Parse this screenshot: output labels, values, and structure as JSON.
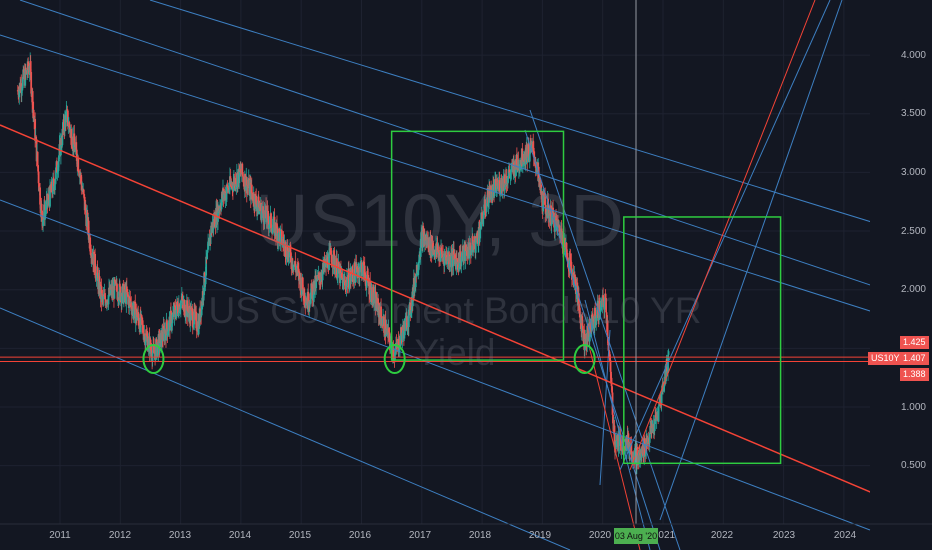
{
  "watermark": {
    "symbol": "US10Y, 3D",
    "name": "US Government Bonds 10 YR Yield"
  },
  "price_axis": {
    "ticks": [
      "4.000",
      "3.500",
      "3.000",
      "2.500",
      "2.000",
      "1.500",
      "1.000",
      "0.500"
    ],
    "badges": {
      "symbol_tag": "US10Y",
      "upper": "1.425",
      "last": "1.407",
      "lower": "1.388"
    }
  },
  "time_axis": {
    "ticks": [
      "2011",
      "2012",
      "2013",
      "2014",
      "2015",
      "2016",
      "2017",
      "2018",
      "2019",
      "2020",
      "2021",
      "2022",
      "2023",
      "2024"
    ],
    "cursor_label": "03 Aug '20"
  },
  "colors": {
    "background": "#131722",
    "candle_up": "#26a69a",
    "candle_down": "#ef5350",
    "channel_lines": "#3d7fc1",
    "trend_line": "#f44336",
    "boxes": "#2ecc40",
    "symbol_badge": "#ef5350"
  },
  "chart_data": {
    "type": "line",
    "title": "US10Y, 3D",
    "subtitle": "US Government Bonds 10 YR Yield",
    "ylim": [
      0.0,
      4.4
    ],
    "xlim": [
      2010.3,
      2025.0
    ],
    "x": [
      2010.3,
      2010.5,
      2010.7,
      2010.9,
      2011.1,
      2011.3,
      2011.5,
      2011.7,
      2011.9,
      2012.1,
      2012.3,
      2012.55,
      2012.8,
      2013.0,
      2013.3,
      2013.5,
      2013.7,
      2014.0,
      2014.3,
      2014.6,
      2014.9,
      2015.1,
      2015.3,
      2015.5,
      2015.7,
      2016.0,
      2016.3,
      2016.55,
      2016.8,
      2017.0,
      2017.3,
      2017.6,
      2017.9,
      2018.1,
      2018.4,
      2018.7,
      2018.85,
      2019.0,
      2019.3,
      2019.55,
      2019.7,
      2019.9,
      2020.05,
      2020.2,
      2020.4,
      2020.6,
      2020.9,
      2021.1
    ],
    "values": [
      3.7,
      3.9,
      2.6,
      2.9,
      3.5,
      3.1,
      2.4,
      1.9,
      2.0,
      1.95,
      1.75,
      1.45,
      1.7,
      1.9,
      1.7,
      2.5,
      2.8,
      3.0,
      2.7,
      2.5,
      2.2,
      1.9,
      2.1,
      2.3,
      2.05,
      2.2,
      1.8,
      1.45,
      1.8,
      2.45,
      2.3,
      2.25,
      2.4,
      2.8,
      2.95,
      3.15,
      3.2,
      2.75,
      2.5,
      2.05,
      1.55,
      1.8,
      1.9,
      0.7,
      0.7,
      0.55,
      0.9,
      1.45
    ],
    "reference_levels": [
      1.425,
      1.388
    ],
    "circled_lows": [
      2012.55,
      2016.55,
      2019.7
    ],
    "boxes": [
      {
        "x": [
          2016.5,
          2019.35
        ],
        "y": [
          1.4,
          3.35
        ]
      },
      {
        "x": [
          2020.35,
          2022.95
        ],
        "y": [
          0.52,
          2.62
        ]
      }
    ]
  }
}
